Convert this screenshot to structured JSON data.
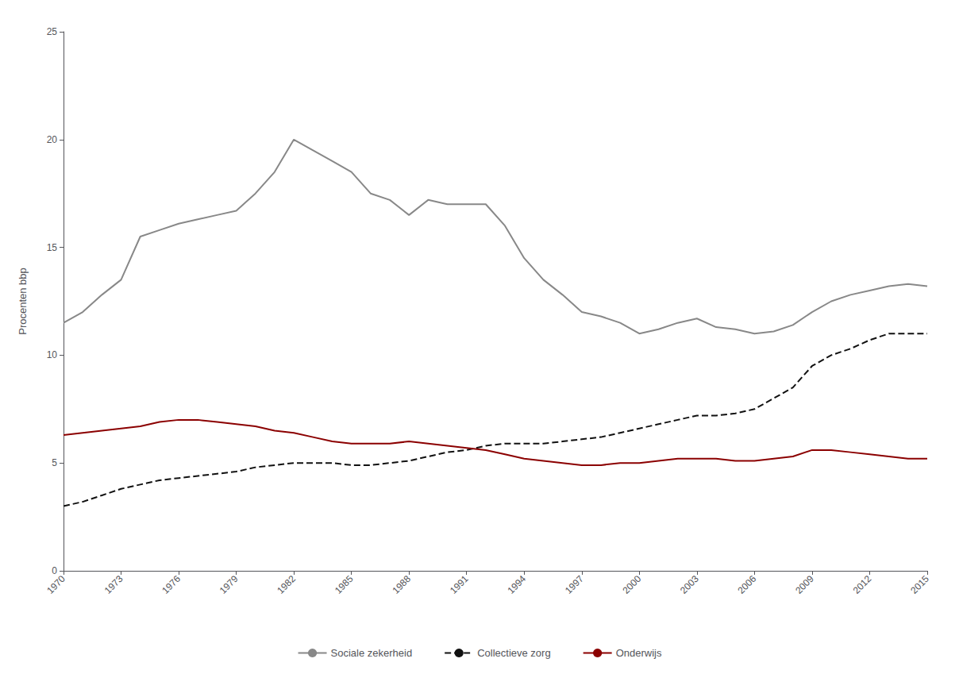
{
  "chart_data": {
    "type": "line",
    "y_label": "Procenten bbp",
    "x": [
      1970,
      1971,
      1972,
      1973,
      1974,
      1975,
      1976,
      1977,
      1978,
      1979,
      1980,
      1981,
      1982,
      1983,
      1984,
      1985,
      1986,
      1987,
      1988,
      1989,
      1990,
      1991,
      1992,
      1993,
      1994,
      1995,
      1996,
      1997,
      1998,
      1999,
      2000,
      2001,
      2002,
      2003,
      2004,
      2005,
      2006,
      2007,
      2008,
      2009,
      2010,
      2011,
      2012,
      2013,
      2014,
      2015
    ],
    "series": [
      {
        "name": "Sociale zekerheid",
        "color": "#888888",
        "line_style": "solid",
        "values": [
          11.5,
          12.0,
          12.8,
          13.5,
          15.5,
          15.8,
          16.1,
          16.3,
          16.5,
          16.7,
          17.5,
          18.5,
          20.0,
          19.5,
          19.0,
          18.5,
          17.5,
          17.2,
          16.5,
          17.2,
          17.0,
          17.0,
          17.0,
          16.0,
          14.5,
          13.5,
          12.8,
          12.0,
          11.8,
          11.5,
          11.0,
          11.2,
          11.5,
          11.7,
          11.3,
          11.2,
          11.0,
          11.1,
          11.4,
          12.0,
          12.5,
          12.8,
          13.0,
          13.2,
          13.3,
          13.2
        ]
      },
      {
        "name": "Collectieve zorg",
        "color": "#111111",
        "line_style": "dashed",
        "values": [
          3.0,
          3.2,
          3.5,
          3.8,
          4.0,
          4.2,
          4.3,
          4.4,
          4.5,
          4.6,
          4.8,
          4.9,
          5.0,
          5.0,
          5.0,
          4.9,
          4.9,
          5.0,
          5.1,
          5.3,
          5.5,
          5.6,
          5.8,
          5.9,
          5.9,
          5.9,
          6.0,
          6.1,
          6.2,
          6.4,
          6.6,
          6.8,
          7.0,
          7.2,
          7.2,
          7.3,
          7.5,
          8.0,
          8.5,
          9.5,
          10.0,
          10.3,
          10.7,
          11.0,
          11.0,
          11.0
        ]
      },
      {
        "name": "Onderwijs",
        "color": "#8b0000",
        "line_style": "solid",
        "values": [
          6.3,
          6.4,
          6.5,
          6.6,
          6.7,
          6.9,
          7.0,
          7.0,
          6.9,
          6.8,
          6.7,
          6.5,
          6.4,
          6.2,
          6.0,
          5.9,
          5.9,
          5.9,
          6.0,
          5.9,
          5.8,
          5.7,
          5.6,
          5.4,
          5.2,
          5.1,
          5.0,
          4.9,
          4.9,
          5.0,
          5.0,
          5.1,
          5.2,
          5.2,
          5.2,
          5.1,
          5.1,
          5.2,
          5.3,
          5.6,
          5.6,
          5.5,
          5.4,
          5.3,
          5.2,
          5.2
        ]
      }
    ],
    "xlim": [
      1970,
      2015
    ],
    "xticks": [
      1970,
      1973,
      1976,
      1979,
      1982,
      1985,
      1988,
      1991,
      1994,
      1997,
      2000,
      2003,
      2006,
      2009,
      2012,
      2015
    ],
    "ylim": [
      0,
      25
    ],
    "yticks": [
      0,
      5,
      10,
      15,
      20,
      25
    ],
    "grid": false,
    "legend": "bottom"
  }
}
